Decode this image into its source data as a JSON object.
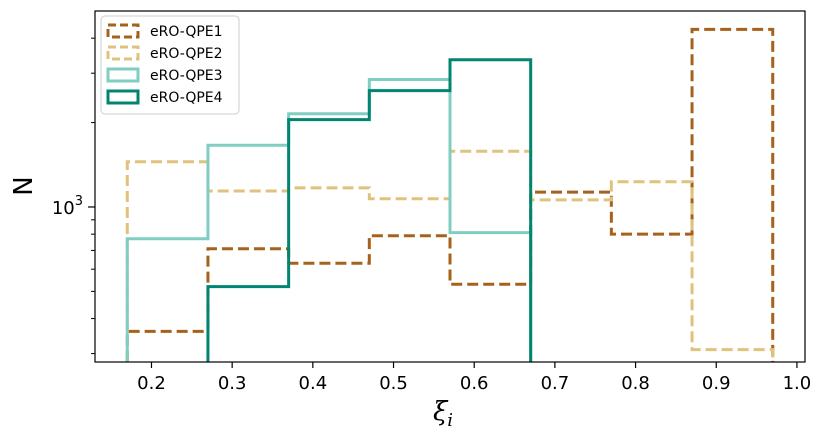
{
  "chart_data": {
    "type": "histogram",
    "title": "",
    "xlabel": "ξ",
    "xlabel_sub": "i",
    "ylabel": "N",
    "y_scale": "log",
    "xlim": [
      0.13,
      1.01
    ],
    "ylim": [
      280,
      5000
    ],
    "x_ticks": [
      0.2,
      0.3,
      0.4,
      0.5,
      0.6,
      0.7,
      0.8,
      0.9,
      1.0
    ],
    "x_tick_labels": [
      "0.2",
      "0.3",
      "0.4",
      "0.5",
      "0.6",
      "0.7",
      "0.8",
      "0.9",
      "1.0"
    ],
    "y_major_ticks": [
      1000
    ],
    "y_tick_label": {
      "base": "10",
      "exp": "3"
    },
    "y_minor_ticks": [
      300,
      400,
      500,
      600,
      700,
      800,
      900,
      2000,
      3000,
      4000
    ],
    "grid": false,
    "legend_position": "top-left",
    "series": [
      {
        "name": "eRO-QPE1",
        "color": "#a6611a",
        "dashed": true,
        "edges": [
          0.17,
          0.27,
          0.37,
          0.47,
          0.57,
          0.67,
          0.77,
          0.87,
          0.97
        ],
        "counts": [
          360,
          710,
          630,
          790,
          530,
          1130,
          800,
          4300
        ]
      },
      {
        "name": "eRO-QPE2",
        "color": "#dfc27d",
        "dashed": true,
        "edges": [
          0.17,
          0.27,
          0.37,
          0.47,
          0.57,
          0.67,
          0.77,
          0.87,
          0.97
        ],
        "counts": [
          1450,
          1140,
          1170,
          1070,
          1580,
          1060,
          1230,
          310
        ]
      },
      {
        "name": "eRO-QPE3",
        "color": "#80cdc1",
        "dashed": false,
        "edges": [
          0.17,
          0.27,
          0.37,
          0.47,
          0.57,
          0.67
        ],
        "counts": [
          770,
          1660,
          2150,
          2850,
          810
        ]
      },
      {
        "name": "eRO-QPE4",
        "color": "#018571",
        "dashed": false,
        "edges": [
          0.27,
          0.37,
          0.47,
          0.57,
          0.67
        ],
        "counts": [
          520,
          2050,
          2600,
          3350
        ]
      }
    ]
  }
}
